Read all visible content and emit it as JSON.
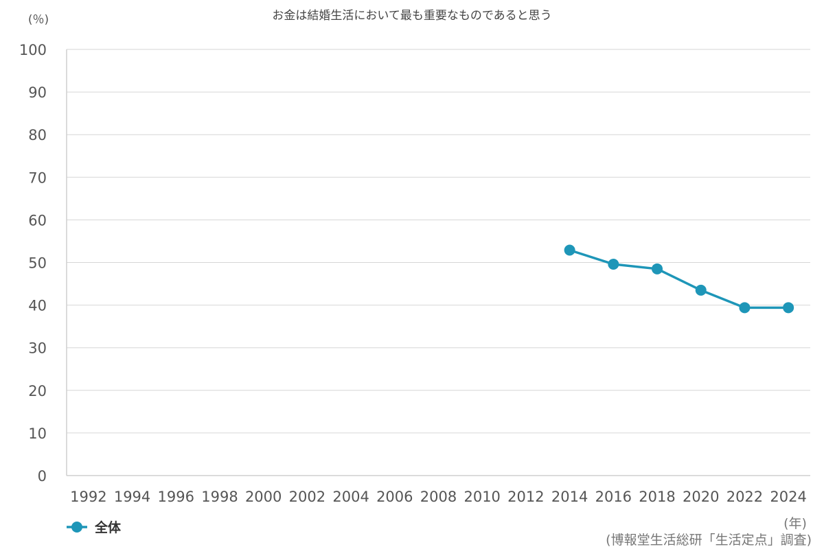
{
  "colors": {
    "series": "#1e96b8",
    "grid": "#d6d6d6",
    "text": "#555555"
  },
  "chart_data": {
    "type": "line",
    "title": "お金は結婚生活において最も重要なものであると思う",
    "ylabel": "(％)",
    "xlabel": "(年)",
    "source": "(博報堂生活総研「生活定点」調査)",
    "ylim": [
      0,
      100
    ],
    "yticks": [
      0,
      10,
      20,
      30,
      40,
      50,
      60,
      70,
      80,
      90,
      100
    ],
    "categories": [
      "1992",
      "1994",
      "1996",
      "1998",
      "2000",
      "2002",
      "2004",
      "2006",
      "2008",
      "2010",
      "2012",
      "2014",
      "2016",
      "2018",
      "2020",
      "2022",
      "2024"
    ],
    "grid": true,
    "legend_position": "bottom-left",
    "series": [
      {
        "name": "全体",
        "color": "#1e96b8",
        "values": [
          null,
          null,
          null,
          null,
          null,
          null,
          null,
          null,
          null,
          null,
          null,
          52.9,
          49.6,
          48.5,
          43.5,
          39.4,
          39.4
        ]
      }
    ]
  }
}
